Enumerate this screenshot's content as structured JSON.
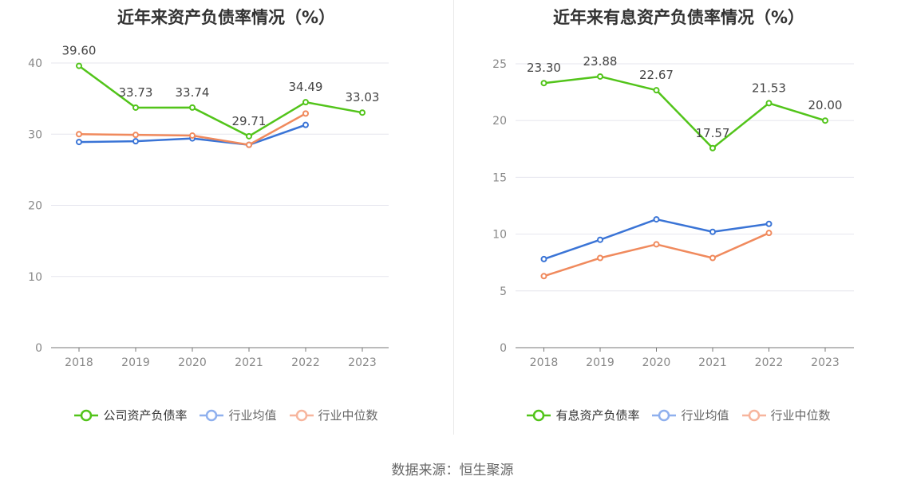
{
  "source": "数据来源：恒生聚源",
  "chart_data": [
    {
      "type": "line",
      "title": "近年来资产负债率情况（%）",
      "categories": [
        "2018",
        "2019",
        "2020",
        "2021",
        "2022",
        "2023"
      ],
      "ylim": [
        0,
        40
      ],
      "yticks": [
        "0",
        "10",
        "20",
        "30",
        "40"
      ],
      "grid": true,
      "legend_position": "bottom-center",
      "series": [
        {
          "name": "公司资产负债率",
          "color": "#52c41a",
          "values": [
            39.6,
            33.73,
            33.74,
            29.71,
            34.49,
            33.03
          ],
          "labels": [
            "39.60",
            "33.73",
            "33.74",
            "29.71",
            "34.49",
            "33.03"
          ]
        },
        {
          "name": "行业均值",
          "color": "#3a74d6",
          "legend_color": "#8fb0ee",
          "values": [
            28.9,
            29.0,
            29.4,
            28.5,
            31.3,
            null
          ]
        },
        {
          "name": "行业中位数",
          "color": "#f08a5d",
          "legend_color": "#f7b59d",
          "values": [
            30.0,
            29.9,
            29.8,
            28.5,
            32.9,
            null
          ]
        }
      ]
    },
    {
      "type": "line",
      "title": "近年来有息资产负债率情况（%）",
      "categories": [
        "2018",
        "2019",
        "2020",
        "2021",
        "2022",
        "2023"
      ],
      "ylim": [
        0,
        25
      ],
      "yticks": [
        "0",
        "5",
        "10",
        "15",
        "20",
        "25"
      ],
      "grid": true,
      "legend_position": "bottom-center",
      "series": [
        {
          "name": "有息资产负债率",
          "color": "#52c41a",
          "values": [
            23.3,
            23.88,
            22.67,
            17.57,
            21.53,
            20.0
          ],
          "labels": [
            "23.30",
            "23.88",
            "22.67",
            "17.57",
            "21.53",
            "20.00"
          ]
        },
        {
          "name": "行业均值",
          "color": "#3a74d6",
          "legend_color": "#8fb0ee",
          "values": [
            7.8,
            9.5,
            11.3,
            10.2,
            10.9,
            null
          ]
        },
        {
          "name": "行业中位数",
          "color": "#f08a5d",
          "legend_color": "#f7b59d",
          "values": [
            6.3,
            7.9,
            9.1,
            7.9,
            10.1,
            null
          ]
        }
      ]
    }
  ]
}
